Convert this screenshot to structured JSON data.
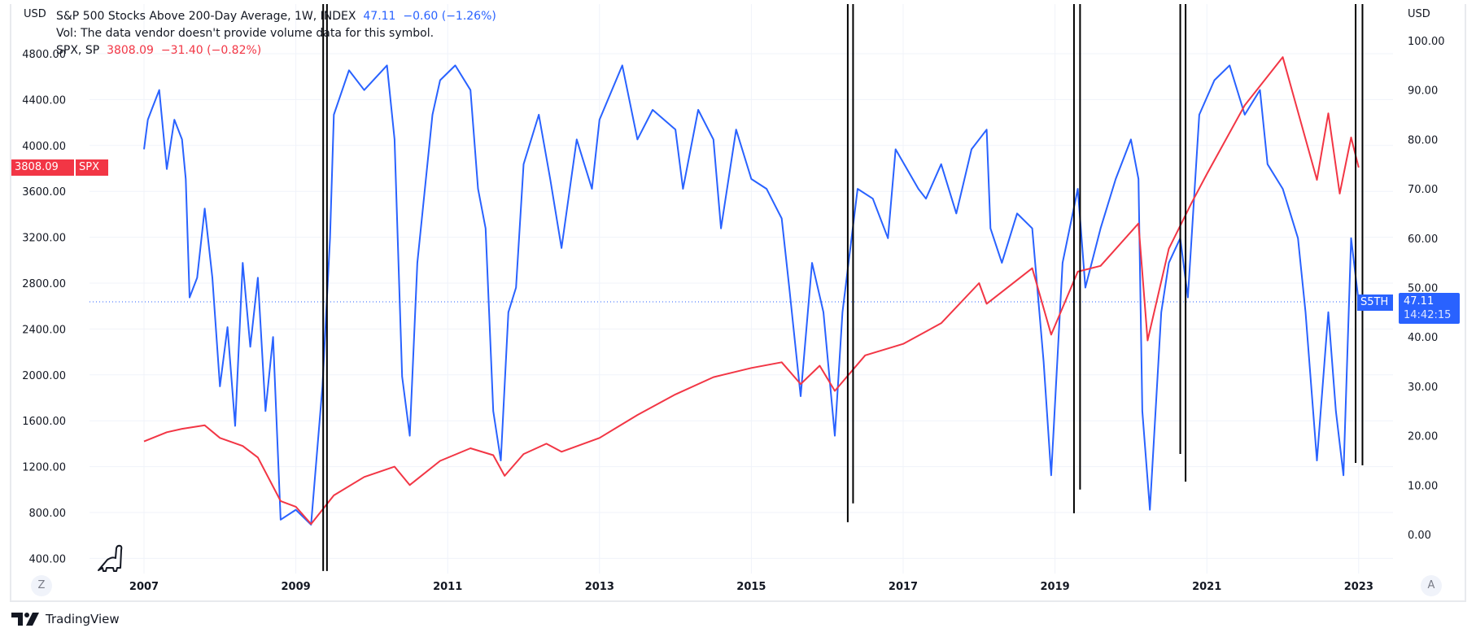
{
  "legend": {
    "line1_name": "S&P 500 Stocks Above 200-Day Average, 1W, INDEX",
    "line1_value": "47.11",
    "line1_change": "−0.60 (−1.26%)",
    "line2": "Vol: The data vendor doesn't provide volume data for this symbol.",
    "line3_name": "SPX, SP",
    "line3_value": "3808.09",
    "line3_change": "−31.40 (−0.82%)"
  },
  "labels": {
    "left_currency": "USD",
    "right_currency": "USD",
    "spx_price": "3808.09",
    "spx_ticker": "SPX",
    "s5th_ticker": "S5TH",
    "s5th_value": "47.11",
    "countdown": "14:42:15",
    "z_button": "Z",
    "a_button": "A",
    "brand": "TradingView"
  },
  "colors": {
    "s5th": "#2962ff",
    "spx": "#f23645",
    "annotation": "#000000"
  },
  "chart_data": {
    "type": "line",
    "title": "S&P 500 Stocks Above 200-Day Average vs SPX (weekly)",
    "x_ticks": [
      "2007",
      "2009",
      "2011",
      "2013",
      "2015",
      "2017",
      "2019",
      "2021",
      "2023"
    ],
    "xlim": [
      2006.7,
      2023.45
    ],
    "left_axis": {
      "ticks": [
        "4800.00",
        "4400.00",
        "4000.00",
        "3600.00",
        "3200.00",
        "2800.00",
        "2400.00",
        "2000.00",
        "1600.00",
        "1200.00",
        "800.00",
        "400.00"
      ],
      "ylim": [
        400,
        4800
      ]
    },
    "right_axis": {
      "ticks": [
        "100.00",
        "90.00",
        "80.00",
        "70.00",
        "60.00",
        "50.00",
        "40.00",
        "30.00",
        "20.00",
        "10.00",
        "0.00"
      ],
      "ylim": [
        0,
        100
      ]
    },
    "current_line_value": 47.11,
    "series": [
      {
        "name": "S5TH",
        "axis": "right",
        "x": [
          2007.0,
          2007.05,
          2007.1,
          2007.2,
          2007.3,
          2007.4,
          2007.5,
          2007.55,
          2007.6,
          2007.7,
          2007.8,
          2007.9,
          2008.0,
          2008.1,
          2008.2,
          2008.3,
          2008.4,
          2008.5,
          2008.6,
          2008.7,
          2008.8,
          2009.0,
          2009.2,
          2009.35,
          2009.45,
          2009.5,
          2009.7,
          2009.9,
          2010.2,
          2010.3,
          2010.4,
          2010.5,
          2010.6,
          2010.8,
          2010.9,
          2011.1,
          2011.3,
          2011.4,
          2011.5,
          2011.6,
          2011.7,
          2011.8,
          2011.9,
          2012.0,
          2012.2,
          2012.35,
          2012.5,
          2012.7,
          2012.9,
          2013.0,
          2013.3,
          2013.5,
          2013.7,
          2014.0,
          2014.1,
          2014.3,
          2014.5,
          2014.6,
          2014.8,
          2015.0,
          2015.2,
          2015.4,
          2015.5,
          2015.65,
          2015.8,
          2015.95,
          2016.1,
          2016.2,
          2016.4,
          2016.6,
          2016.8,
          2016.9,
          2017.2,
          2017.3,
          2017.5,
          2017.7,
          2017.9,
          2018.1,
          2018.15,
          2018.3,
          2018.5,
          2018.7,
          2018.85,
          2018.95,
          2019.1,
          2019.3,
          2019.4,
          2019.6,
          2019.8,
          2020.0,
          2020.1,
          2020.15,
          2020.25,
          2020.4,
          2020.5,
          2020.65,
          2020.75,
          2020.9,
          2021.1,
          2021.3,
          2021.5,
          2021.7,
          2021.8,
          2022.0,
          2022.2,
          2022.3,
          2022.45,
          2022.6,
          2022.7,
          2022.8,
          2022.9,
          2023.0
        ],
        "values": [
          78,
          84,
          86,
          90,
          74,
          84,
          80,
          72,
          48,
          52,
          66,
          52,
          30,
          42,
          22,
          55,
          38,
          52,
          25,
          40,
          3,
          5,
          2,
          30,
          60,
          85,
          94,
          90,
          95,
          80,
          32,
          20,
          55,
          85,
          92,
          95,
          90,
          70,
          62,
          25,
          15,
          45,
          50,
          75,
          85,
          72,
          58,
          80,
          70,
          84,
          95,
          80,
          86,
          82,
          70,
          86,
          80,
          62,
          82,
          72,
          70,
          64,
          50,
          28,
          55,
          45,
          20,
          45,
          70,
          68,
          60,
          78,
          70,
          68,
          75,
          65,
          78,
          82,
          62,
          55,
          65,
          62,
          35,
          12,
          55,
          70,
          50,
          62,
          72,
          80,
          72,
          25,
          5,
          45,
          55,
          60,
          48,
          85,
          92,
          95,
          85,
          90,
          75,
          70,
          60,
          45,
          15,
          45,
          25,
          12,
          60,
          47.11
        ]
      },
      {
        "name": "SPX",
        "axis": "left",
        "x": [
          2007.0,
          2007.3,
          2007.5,
          2007.8,
          2008.0,
          2008.3,
          2008.5,
          2008.8,
          2009.0,
          2009.2,
          2009.5,
          2009.9,
          2010.3,
          2010.5,
          2010.9,
          2011.3,
          2011.6,
          2011.75,
          2012.0,
          2012.3,
          2012.5,
          2013.0,
          2013.5,
          2014.0,
          2014.5,
          2015.0,
          2015.4,
          2015.65,
          2015.9,
          2016.1,
          2016.5,
          2017.0,
          2017.5,
          2018.0,
          2018.1,
          2018.7,
          2018.95,
          2019.3,
          2019.6,
          2020.1,
          2020.22,
          2020.5,
          2020.8,
          2021.0,
          2021.5,
          2022.0,
          2022.45,
          2022.6,
          2022.75,
          2022.9,
          2023.0
        ],
        "values": [
          1420,
          1500,
          1530,
          1560,
          1450,
          1380,
          1280,
          900,
          850,
          700,
          950,
          1110,
          1200,
          1040,
          1250,
          1360,
          1300,
          1120,
          1310,
          1400,
          1330,
          1450,
          1650,
          1830,
          1980,
          2060,
          2110,
          1920,
          2080,
          1860,
          2170,
          2270,
          2450,
          2800,
          2620,
          2930,
          2350,
          2900,
          2950,
          3320,
          2300,
          3100,
          3500,
          3750,
          4350,
          4770,
          3700,
          4280,
          3580,
          4070,
          3808.09
        ]
      }
    ],
    "annotations": [
      {
        "type": "vertical-line",
        "x": 2009.36,
        "bottom": -7.4
      },
      {
        "type": "vertical-line",
        "x": 2009.41,
        "bottom": -7.4
      },
      {
        "type": "vertical-line",
        "x": 2016.27,
        "bottom": 2.5
      },
      {
        "type": "vertical-line",
        "x": 2016.34,
        "bottom": 6.3
      },
      {
        "type": "vertical-line",
        "x": 2019.25,
        "bottom": 4.3
      },
      {
        "type": "vertical-line",
        "x": 2019.33,
        "bottom": 9.1
      },
      {
        "type": "vertical-line",
        "x": 2020.65,
        "bottom": 16.3
      },
      {
        "type": "vertical-line",
        "x": 2020.72,
        "bottom": 10.7
      },
      {
        "type": "vertical-line",
        "x": 2022.96,
        "bottom": 14.5
      },
      {
        "type": "vertical-line",
        "x": 2023.05,
        "bottom": 14.0
      }
    ]
  }
}
